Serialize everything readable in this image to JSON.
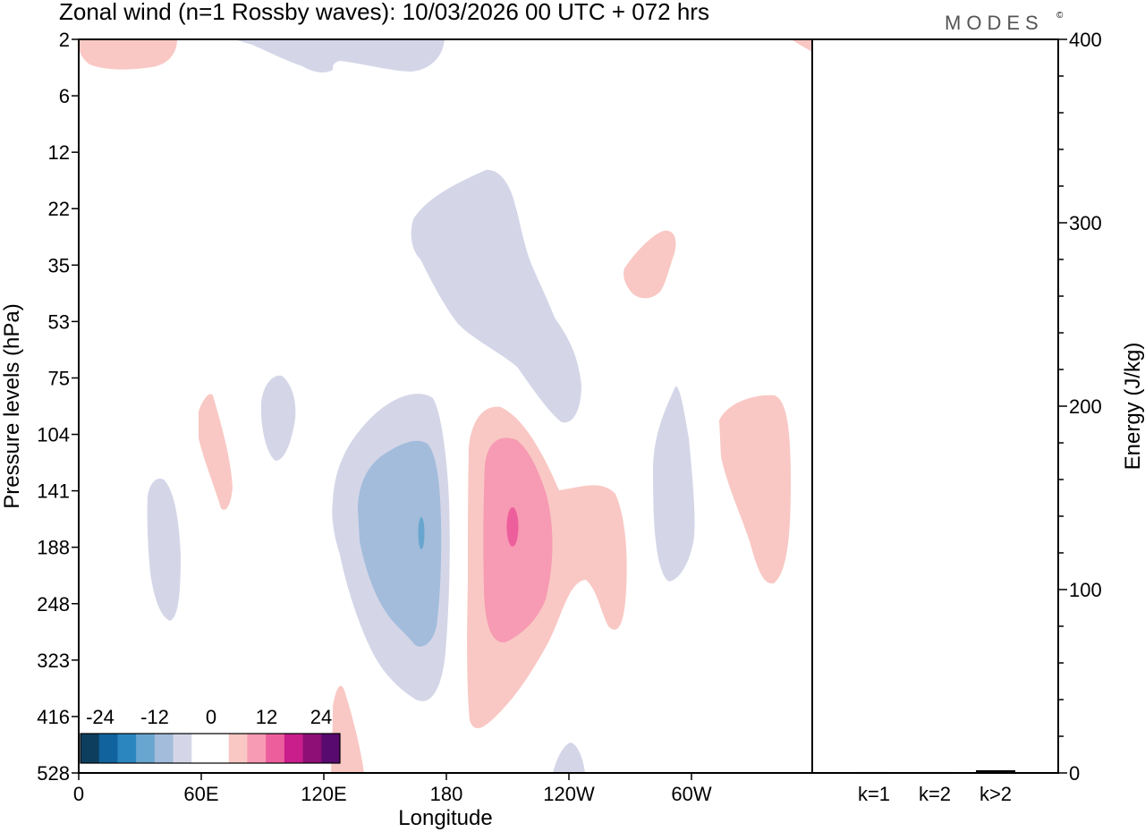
{
  "chart_data": {
    "type": "contour",
    "title": "Zonal wind (n=1 Rossby waves):  10/03/2026  00 UTC  + 072 hrs",
    "brand": "MODES",
    "brand_mark": "©",
    "xlabel": "Longitude",
    "ylabel": "Pressure levels (hPa)",
    "y2label": "Energy (J/kg)",
    "x_ticks": [
      "0",
      "60E",
      "120E",
      "180",
      "120W",
      "60W"
    ],
    "y_ticks": [
      "2",
      "6",
      "12",
      "22",
      "35",
      "53",
      "75",
      "104",
      "141",
      "188",
      "248",
      "323",
      "416",
      "528"
    ],
    "y2_ticks": [
      0,
      100,
      200,
      300,
      400
    ],
    "y2lim": [
      0,
      400
    ],
    "colorbar": {
      "labels": [
        "-24",
        "-12",
        "0",
        "12",
        "24"
      ],
      "colors": [
        "#0e3e5e",
        "#10639c",
        "#2b86c0",
        "#68a6cf",
        "#a3bcdb",
        "#d4d6e8",
        "#ffffff",
        "#ffffff",
        "#f9c8c4",
        "#f79ab3",
        "#ed5f9c",
        "#c91e8b",
        "#8e0f76",
        "#580a6f"
      ]
    },
    "energy_bars": {
      "categories": [
        "k=1",
        "k=2",
        "k>2"
      ],
      "values": [
        0.5,
        0.5,
        1.5
      ]
    }
  }
}
